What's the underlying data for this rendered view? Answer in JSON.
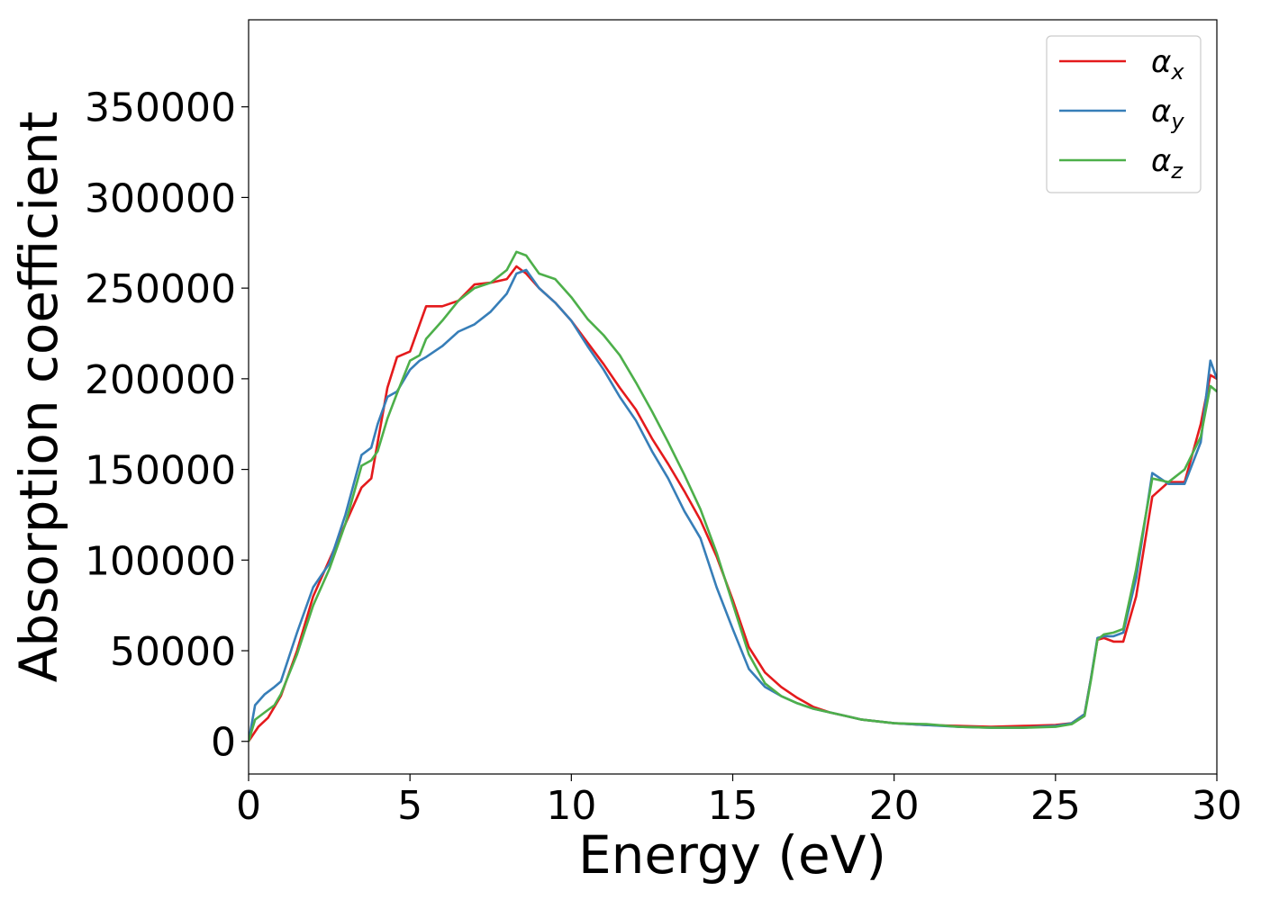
{
  "chart_data": {
    "type": "line",
    "xlabel": "Energy (eV)",
    "ylabel": "Absorption coefficient",
    "xlim": [
      0,
      30
    ],
    "ylim": [
      -18000,
      398000
    ],
    "xticks": [
      0,
      5,
      10,
      15,
      20,
      25,
      30
    ],
    "yticks": [
      0,
      50000,
      100000,
      150000,
      200000,
      250000,
      300000,
      350000
    ],
    "grid": false,
    "legend_position": "top-right",
    "series": [
      {
        "name": "α",
        "subscript": "x",
        "color": "#e41a1c",
        "x": [
          0,
          0.3,
          0.6,
          1,
          1.5,
          2,
          2.5,
          3,
          3.5,
          3.8,
          4,
          4.3,
          4.6,
          5,
          5.3,
          5.5,
          6,
          6.5,
          7,
          7.5,
          8,
          8.3,
          8.6,
          9,
          9.5,
          10,
          10.5,
          11,
          11.5,
          12,
          12.5,
          13,
          13.5,
          14,
          14.5,
          15,
          15.5,
          16,
          16.5,
          17,
          17.5,
          18,
          18.5,
          19,
          20,
          21,
          22,
          23,
          24,
          25,
          25.5,
          25.9,
          26.1,
          26.3,
          26.5,
          26.8,
          27.1,
          27.5,
          28,
          28.5,
          29,
          29.5,
          29.8,
          30
        ],
        "y": [
          0,
          8000,
          13000,
          25000,
          50000,
          80000,
          100000,
          120000,
          140000,
          145000,
          165000,
          195000,
          212000,
          215000,
          230000,
          240000,
          240000,
          243000,
          252000,
          253000,
          255000,
          262000,
          258000,
          250000,
          242000,
          232000,
          220000,
          208000,
          195000,
          183000,
          167000,
          153000,
          138000,
          122000,
          102000,
          78000,
          52000,
          38000,
          30000,
          24000,
          19000,
          16000,
          14000,
          12000,
          10000,
          9000,
          8500,
          8000,
          8500,
          9000,
          10000,
          15000,
          35000,
          56000,
          57000,
          55000,
          55000,
          80000,
          135000,
          143000,
          143000,
          175000,
          202000,
          200000
        ]
      },
      {
        "name": "α",
        "subscript": "y",
        "color": "#377eb8",
        "x": [
          0,
          0.2,
          0.5,
          0.8,
          1,
          1.5,
          2,
          2.5,
          3,
          3.5,
          3.8,
          4,
          4.3,
          4.6,
          5,
          5.3,
          5.5,
          6,
          6.5,
          7,
          7.5,
          8,
          8.3,
          8.6,
          9,
          9.5,
          10,
          10.5,
          11,
          11.5,
          12,
          12.5,
          13,
          13.5,
          14,
          14.5,
          15,
          15.5,
          16,
          16.5,
          17,
          17.5,
          18,
          18.5,
          19,
          20,
          21,
          22,
          23,
          24,
          25,
          25.5,
          25.9,
          26.1,
          26.3,
          26.5,
          26.8,
          27.1,
          27.5,
          28,
          28.5,
          29,
          29.5,
          29.8,
          30
        ],
        "y": [
          0,
          20000,
          26000,
          30000,
          33000,
          60000,
          85000,
          98000,
          125000,
          158000,
          162000,
          175000,
          190000,
          193000,
          205000,
          210000,
          212000,
          218000,
          226000,
          230000,
          237000,
          247000,
          258000,
          260000,
          250000,
          242000,
          232000,
          218000,
          205000,
          190000,
          177000,
          160000,
          145000,
          127000,
          112000,
          85000,
          62000,
          40000,
          30000,
          25000,
          21000,
          18000,
          16000,
          14000,
          12000,
          10000,
          9000,
          8000,
          7500,
          7500,
          8500,
          10000,
          15000,
          35000,
          57000,
          58000,
          58000,
          60000,
          90000,
          148000,
          142000,
          142000,
          165000,
          210000,
          200000
        ]
      },
      {
        "name": "α",
        "subscript": "z",
        "color": "#4daf4a",
        "x": [
          0,
          0.2,
          0.5,
          0.8,
          1,
          1.5,
          2,
          2.5,
          3,
          3.5,
          3.8,
          4,
          4.3,
          4.6,
          5,
          5.3,
          5.5,
          6,
          6.5,
          7,
          7.5,
          8,
          8.3,
          8.6,
          9,
          9.5,
          10,
          10.5,
          11,
          11.5,
          12,
          12.5,
          13,
          13.5,
          14,
          14.5,
          15,
          15.5,
          16,
          16.5,
          17,
          17.5,
          18,
          18.5,
          19,
          20,
          21,
          22,
          23,
          24,
          25,
          25.5,
          25.9,
          26.1,
          26.3,
          26.5,
          26.8,
          27.1,
          27.5,
          28,
          28.5,
          29,
          29.5,
          29.8,
          30
        ],
        "y": [
          0,
          12000,
          16000,
          20000,
          26000,
          48000,
          75000,
          95000,
          120000,
          152000,
          155000,
          160000,
          178000,
          192000,
          210000,
          213000,
          222000,
          232000,
          243000,
          250000,
          253000,
          260000,
          270000,
          268000,
          258000,
          255000,
          245000,
          233000,
          224000,
          213000,
          198000,
          182000,
          165000,
          147000,
          128000,
          104000,
          76000,
          48000,
          32000,
          25000,
          21000,
          18000,
          16000,
          14000,
          12000,
          10000,
          9500,
          8000,
          7500,
          7500,
          8000,
          9500,
          14000,
          34000,
          56000,
          59000,
          60000,
          62000,
          95000,
          145000,
          143000,
          150000,
          168000,
          196000,
          193000
        ]
      }
    ]
  }
}
